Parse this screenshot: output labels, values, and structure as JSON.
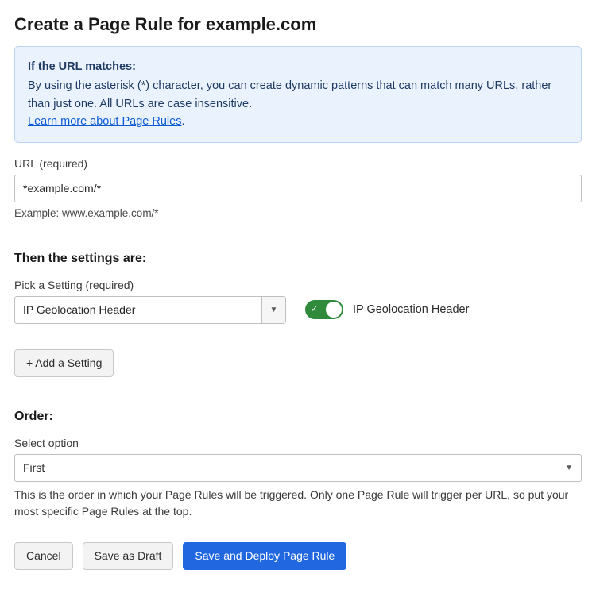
{
  "header": {
    "title": "Create a Page Rule for example.com"
  },
  "infobox": {
    "heading": "If the URL matches:",
    "body": "By using the asterisk (*) character, you can create dynamic patterns that can match many URLs, rather than just one. All URLs are case insensitive.",
    "link_text": "Learn more about Page Rules",
    "period": "."
  },
  "url": {
    "label": "URL (required)",
    "value": "*example.com/*",
    "hint": "Example: www.example.com/*"
  },
  "settings": {
    "heading": "Then the settings are:",
    "pick_label": "Pick a Setting (required)",
    "selected": "IP Geolocation Header",
    "toggle_label": "IP Geolocation Header",
    "toggle_on": true,
    "add_button": "+ Add a Setting"
  },
  "order": {
    "heading": "Order:",
    "label": "Select option",
    "selected": "First",
    "hint": "This is the order in which your Page Rules will be triggered. Only one Page Rule will trigger per URL, so put your most specific Page Rules at the top."
  },
  "actions": {
    "cancel": "Cancel",
    "draft": "Save as Draft",
    "deploy": "Save and Deploy Page Rule"
  },
  "colors": {
    "info_bg": "#eaf2fe",
    "info_border": "#bcd4f5",
    "info_text": "#1f3b63",
    "link": "#0e5bd6",
    "toggle_on": "#2f8a3c",
    "primary": "#2067e0",
    "btn_gray_bg": "#f3f3f3",
    "border_gray": "#bfbfbf",
    "divider": "#e2e2e2"
  }
}
